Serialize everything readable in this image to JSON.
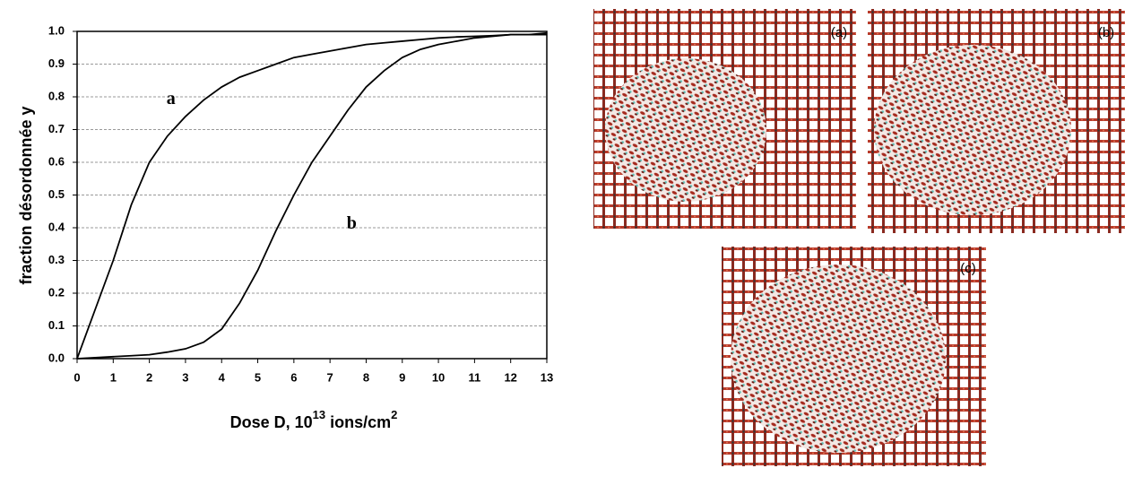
{
  "chart_data": {
    "type": "line",
    "ylabel": "fraction désordonnée y",
    "xlabel_parts": [
      "Dose D, 10",
      "13",
      "ions/cm",
      "2"
    ],
    "x": [
      0,
      0.5,
      1,
      1.5,
      2,
      2.5,
      3,
      3.5,
      4,
      4.5,
      5,
      5.5,
      6,
      6.5,
      7,
      7.5,
      8,
      8.5,
      9,
      9.5,
      10,
      10.5,
      11,
      11.5,
      12,
      12.5,
      13
    ],
    "series": [
      {
        "name": "a",
        "color": "#000000",
        "values": [
          0,
          0.15,
          0.3,
          0.47,
          0.6,
          0.68,
          0.74,
          0.79,
          0.83,
          0.86,
          0.88,
          0.9,
          0.92,
          0.93,
          0.94,
          0.95,
          0.96,
          0.965,
          0.97,
          0.975,
          0.98,
          0.983,
          0.985,
          0.987,
          0.99,
          0.99,
          0.99
        ]
      },
      {
        "name": "b",
        "color": "#000000",
        "values": [
          0,
          0.003,
          0.006,
          0.009,
          0.012,
          0.02,
          0.03,
          0.05,
          0.09,
          0.17,
          0.27,
          0.39,
          0.5,
          0.6,
          0.68,
          0.76,
          0.83,
          0.88,
          0.92,
          0.945,
          0.96,
          0.97,
          0.98,
          0.985,
          0.99,
          0.99,
          0.995
        ]
      }
    ],
    "xlim": [
      0,
      13
    ],
    "xticks": [
      0,
      1,
      2,
      3,
      4,
      5,
      6,
      7,
      8,
      9,
      10,
      11,
      12,
      13
    ],
    "ylim": [
      0,
      1
    ],
    "yticks": [
      {
        "value": 0,
        "label": "0.0"
      },
      0.1,
      0.2,
      0.3,
      0.4,
      0.5,
      0.6,
      0.7,
      0.8,
      0.9,
      {
        "value": 1,
        "label": "1.0"
      }
    ],
    "grid": true
  },
  "panels": [
    {
      "label": "(a)"
    },
    {
      "label": "(b)"
    },
    {
      "label": "(c)"
    }
  ]
}
